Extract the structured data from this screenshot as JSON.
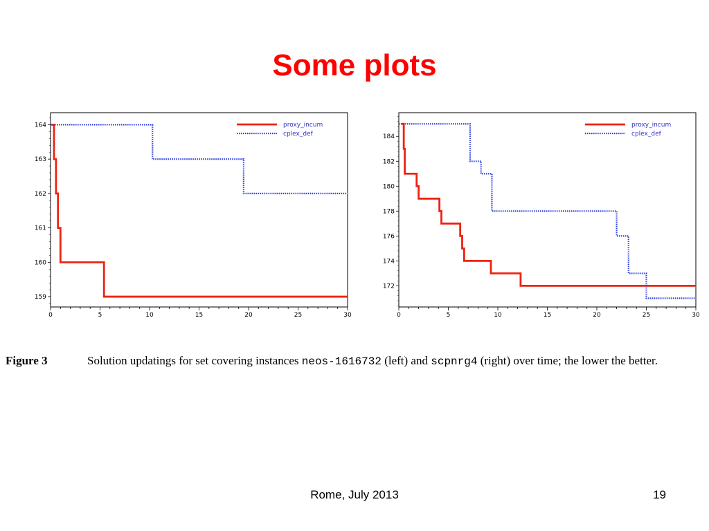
{
  "slide": {
    "title": "Some plots"
  },
  "caption": {
    "label": "Figure 3",
    "part1": "Solution updatings for set covering instances ",
    "instance_left": "neos-1616732",
    "part2": " (left) and ",
    "instance_right": "scpnrg4",
    "part3": " (right) over time; the lower the better."
  },
  "footer": {
    "center": "Rome, July 2013",
    "page": "19"
  },
  "colors": {
    "proxy_incum": "#ee2211",
    "cplex_def": "#3344dd"
  },
  "chart_data": [
    {
      "type": "line",
      "step": true,
      "xlim": [
        0,
        30
      ],
      "ylim": [
        158.7,
        164.35
      ],
      "xticks": [
        0,
        5,
        10,
        15,
        20,
        25,
        30
      ],
      "yticks": [
        159,
        160,
        161,
        162,
        163,
        164
      ],
      "legend_position": "top-right",
      "series": [
        {
          "name": "proxy_incum",
          "style": "solid",
          "x": [
            0.1,
            0.35,
            0.55,
            0.75,
            1.0,
            5.4,
            30
          ],
          "y": [
            164,
            163,
            162,
            161,
            160,
            159,
            159
          ]
        },
        {
          "name": "cplex_def",
          "style": "dotted",
          "x": [
            0,
            10.3,
            19.5,
            30
          ],
          "y": [
            164,
            163,
            162,
            162
          ]
        }
      ]
    },
    {
      "type": "line",
      "step": true,
      "xlim": [
        0,
        30
      ],
      "ylim": [
        170.3,
        185.9
      ],
      "xticks": [
        0,
        5,
        10,
        15,
        20,
        25,
        30
      ],
      "yticks": [
        172,
        174,
        176,
        178,
        180,
        182,
        184
      ],
      "legend_position": "top-right",
      "series": [
        {
          "name": "proxy_incum",
          "style": "solid",
          "x": [
            0.3,
            0.5,
            0.6,
            1.8,
            2.0,
            4.1,
            4.3,
            6.2,
            6.4,
            6.6,
            9.3,
            12.3,
            30
          ],
          "y": [
            185,
            183,
            181,
            180,
            179,
            178,
            177,
            176,
            175,
            174,
            173,
            172,
            172
          ]
        },
        {
          "name": "cplex_def",
          "style": "dotted",
          "x": [
            0,
            7.2,
            8.3,
            9.4,
            22.0,
            23.2,
            25.0,
            30
          ],
          "y": [
            185,
            182,
            181,
            178,
            176,
            173,
            171,
            171
          ]
        }
      ]
    }
  ]
}
